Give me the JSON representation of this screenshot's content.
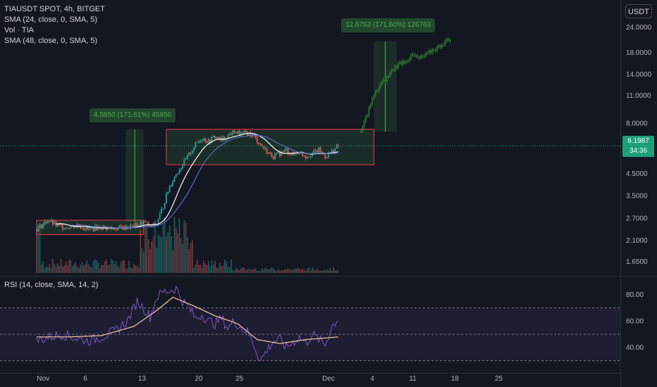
{
  "legend": {
    "symbol": "TIAUSDT SPOT, 4h, BITGET",
    "sma1": "SMA (24, close, 0, SMA, 5)",
    "vol": "Vol · TIA",
    "sma2": "SMA (48, close, 0, SMA, 5)"
  },
  "rsi_legend": "RSI (14, close, SMA, 14, 2)",
  "currency_button": "USDT",
  "last_price": {
    "value": "6.1987",
    "countdown": "34:36"
  },
  "measure_1": "4.5950 (171.61%) 45950",
  "measure_2": "12.6763 (171.60%) 126763",
  "price_axis": [
    "24.0000",
    "18.0000",
    "14.0000",
    "11.0000",
    "8.0000",
    "4.5000",
    "3.5000",
    "2.7000",
    "2.1000",
    "1.6500"
  ],
  "rsi_axis": [
    "80.00",
    "60.00",
    "40.00"
  ],
  "time_axis": [
    "Nov",
    "6",
    "13",
    "20",
    "25",
    "Dec",
    "4",
    "11",
    "18",
    "25"
  ],
  "colors": {
    "up": "#26a69a",
    "down": "#ef5350",
    "sma24": "#ffffff",
    "sma48": "#5c6bc0",
    "rsi": "#7e57c2",
    "rsi_ma": "#f5c9a8",
    "box_border": "#f23645",
    "projection": "#1b5e20"
  },
  "chart_data": {
    "type": "candlestick",
    "symbol": "TIAUSDT",
    "interval": "4h",
    "price_scale": "log",
    "price_range": [
      1.45,
      28
    ],
    "rsi_range": [
      25,
      90
    ],
    "rsi_levels": [
      70,
      50,
      30
    ],
    "series": [
      {
        "name": "price",
        "path": [
          [
            0,
            2.4
          ],
          [
            3,
            2.5
          ],
          [
            7,
            2.65
          ],
          [
            12,
            2.5
          ],
          [
            18,
            2.45
          ],
          [
            25,
            2.5
          ],
          [
            32,
            2.4
          ],
          [
            40,
            2.45
          ],
          [
            48,
            2.4
          ],
          [
            55,
            2.45
          ],
          [
            62,
            2.5
          ],
          [
            66,
            2.6
          ],
          [
            70,
            2.45
          ],
          [
            74,
            2.55
          ],
          [
            78,
            3.1
          ],
          [
            82,
            3.9
          ],
          [
            86,
            4.5
          ],
          [
            90,
            5.0
          ],
          [
            94,
            5.6
          ],
          [
            98,
            6.3
          ],
          [
            102,
            6.8
          ],
          [
            106,
            6.5
          ],
          [
            110,
            6.9
          ],
          [
            114,
            6.6
          ],
          [
            118,
            7.0
          ],
          [
            122,
            7.3
          ],
          [
            126,
            7.1
          ],
          [
            130,
            7.2
          ],
          [
            134,
            6.9
          ],
          [
            138,
            6.3
          ],
          [
            142,
            5.8
          ],
          [
            146,
            5.5
          ],
          [
            150,
            5.7
          ],
          [
            154,
            5.9
          ],
          [
            158,
            5.6
          ],
          [
            162,
            5.8
          ],
          [
            166,
            5.5
          ],
          [
            170,
            5.7
          ],
          [
            174,
            5.9
          ],
          [
            178,
            5.5
          ],
          [
            182,
            5.8
          ],
          [
            186,
            6.2
          ]
        ]
      },
      {
        "name": "projection",
        "path": [
          [
            200,
            7.3
          ],
          [
            204,
            9.0
          ],
          [
            208,
            11.0
          ],
          [
            212,
            12.5
          ],
          [
            216,
            13.5
          ],
          [
            220,
            15.0
          ],
          [
            224,
            16.0
          ],
          [
            228,
            16.5
          ],
          [
            232,
            17.5
          ],
          [
            236,
            16.8
          ],
          [
            240,
            17.5
          ],
          [
            244,
            18.5
          ],
          [
            248,
            19.2
          ],
          [
            252,
            20.5
          ],
          [
            255,
            21.0
          ]
        ]
      }
    ],
    "rsi": [
      [
        0,
        45
      ],
      [
        8,
        48
      ],
      [
        16,
        50
      ],
      [
        24,
        47
      ],
      [
        32,
        45
      ],
      [
        40,
        48
      ],
      [
        48,
        52
      ],
      [
        56,
        60
      ],
      [
        62,
        75
      ],
      [
        66,
        70
      ],
      [
        70,
        63
      ],
      [
        74,
        78
      ],
      [
        78,
        82
      ],
      [
        82,
        83
      ],
      [
        86,
        85
      ],
      [
        90,
        75
      ],
      [
        94,
        70
      ],
      [
        98,
        62
      ],
      [
        102,
        65
      ],
      [
        106,
        60
      ],
      [
        110,
        58
      ],
      [
        114,
        62
      ],
      [
        118,
        55
      ],
      [
        122,
        60
      ],
      [
        126,
        55
      ],
      [
        130,
        52
      ],
      [
        134,
        42
      ],
      [
        138,
        30
      ],
      [
        142,
        38
      ],
      [
        146,
        45
      ],
      [
        150,
        46
      ],
      [
        154,
        40
      ],
      [
        158,
        44
      ],
      [
        162,
        48
      ],
      [
        166,
        43
      ],
      [
        170,
        50
      ],
      [
        174,
        46
      ],
      [
        178,
        42
      ],
      [
        182,
        56
      ],
      [
        186,
        62
      ]
    ],
    "rsi_ma": [
      [
        0,
        48
      ],
      [
        20,
        48
      ],
      [
        40,
        49
      ],
      [
        60,
        56
      ],
      [
        74,
        68
      ],
      [
        84,
        78
      ],
      [
        96,
        72
      ],
      [
        110,
        64
      ],
      [
        124,
        58
      ],
      [
        136,
        46
      ],
      [
        150,
        43
      ],
      [
        166,
        46
      ],
      [
        186,
        48
      ]
    ],
    "x_ticks": [
      [
        4,
        "Nov"
      ],
      [
        30,
        "6"
      ],
      [
        65,
        "13"
      ],
      [
        100,
        "20"
      ],
      [
        125,
        "25"
      ],
      [
        180,
        "Dec"
      ],
      [
        207,
        "4"
      ],
      [
        232,
        "11"
      ],
      [
        258,
        "18"
      ],
      [
        285,
        "25"
      ]
    ]
  }
}
